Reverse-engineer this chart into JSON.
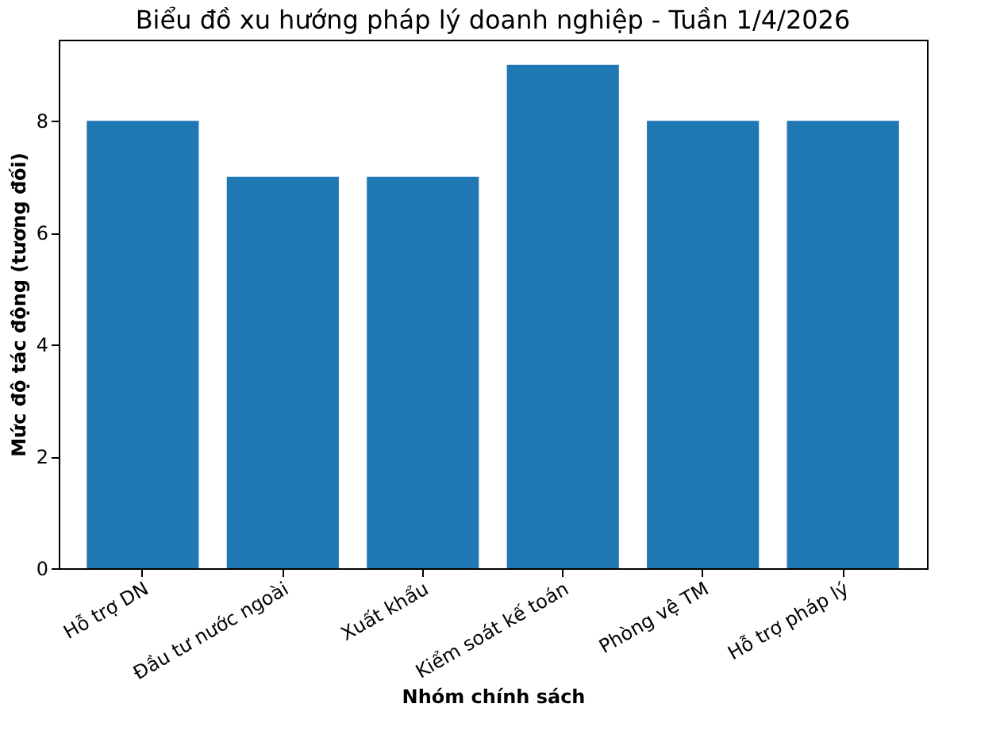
{
  "chart_data": {
    "type": "bar",
    "title": "Biểu đồ xu hướng pháp lý doanh nghiệp - Tuần 1/4/2026",
    "xlabel": "Nhóm chính sách",
    "ylabel": "Mức độ tác động (tương đối)",
    "categories": [
      "Hỗ trợ DN",
      "Đầu tư nước ngoài",
      "Xuất khẩu",
      "Kiểm soát kế toán",
      "Phòng vệ TM",
      "Hỗ trợ pháp lý"
    ],
    "values": [
      8,
      7,
      7,
      9,
      8,
      8
    ],
    "color": "#1f77b4",
    "ylim": [
      0,
      9.45
    ],
    "yticks": [
      0,
      2,
      4,
      6,
      8
    ],
    "grid": false
  }
}
